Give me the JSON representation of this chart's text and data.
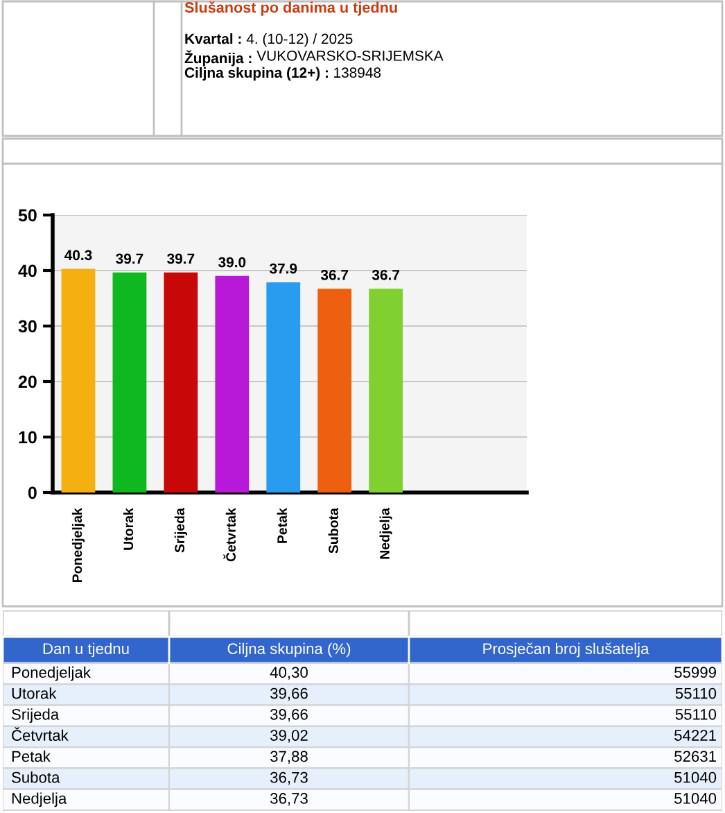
{
  "chart_data": [
    {
      "type": "bar",
      "title": "Slušanost po danima u tjednu",
      "annotations": [
        "Kvartal : 4. (10-12) / 2025",
        "Županija : VUKOVARSKO-SRIJEMSKA",
        "Ciljna skupina (12+) : 138948"
      ],
      "categories": [
        "Ponedjeljak",
        "Utorak",
        "Srijeda",
        "Četvrtak",
        "Petak",
        "Subota",
        "Nedjelja"
      ],
      "values": [
        40.3,
        39.66,
        39.66,
        39.02,
        37.88,
        36.73,
        36.73
      ],
      "value_labels": [
        "40.3",
        "39.7",
        "39.7",
        "39.0",
        "37.9",
        "36.7",
        "36.7"
      ],
      "colors": [
        "#f4b010",
        "#10b820",
        "#c80808",
        "#b818d8",
        "#2a9cf0",
        "#ec6010",
        "#80d030"
      ],
      "ylim": [
        0,
        50
      ],
      "yticks": [
        0,
        10,
        20,
        30,
        40,
        50
      ],
      "grid": "y"
    },
    {
      "type": "other",
      "xlabel": "Dan u tjednu",
      "data_labels": true,
      "categories": [
        "Ponedjeljak",
        "Utorak",
        "Srijeda",
        "Četvrtak",
        "Petak",
        "Subota",
        "Nedjelja"
      ],
      "series": [
        {
          "name": "Ciljna skupina (%)",
          "colors": [
            "#fbfcff",
            "#e6effc",
            "#fbfcff",
            "#e6effc",
            "#fbfcff",
            "#e6effc",
            "#fbfcff"
          ],
          "values": [
            40.3,
            39.66,
            39.66,
            39.02,
            37.88,
            36.73,
            36.73
          ],
          "value_labels": [
            "40,30",
            "39,66",
            "39,66",
            "39,02",
            "37,88",
            "36,73",
            "36,73"
          ]
        },
        {
          "name": "Prosječan broj slušatelja",
          "colors": [
            "#fbfcff",
            "#e6effc",
            "#fbfcff",
            "#e6effc",
            "#fbfcff",
            "#e6effc",
            "#fbfcff"
          ],
          "values": [
            55999,
            55110,
            55110,
            54221,
            52631,
            51040,
            51040
          ]
        }
      ]
    }
  ]
}
